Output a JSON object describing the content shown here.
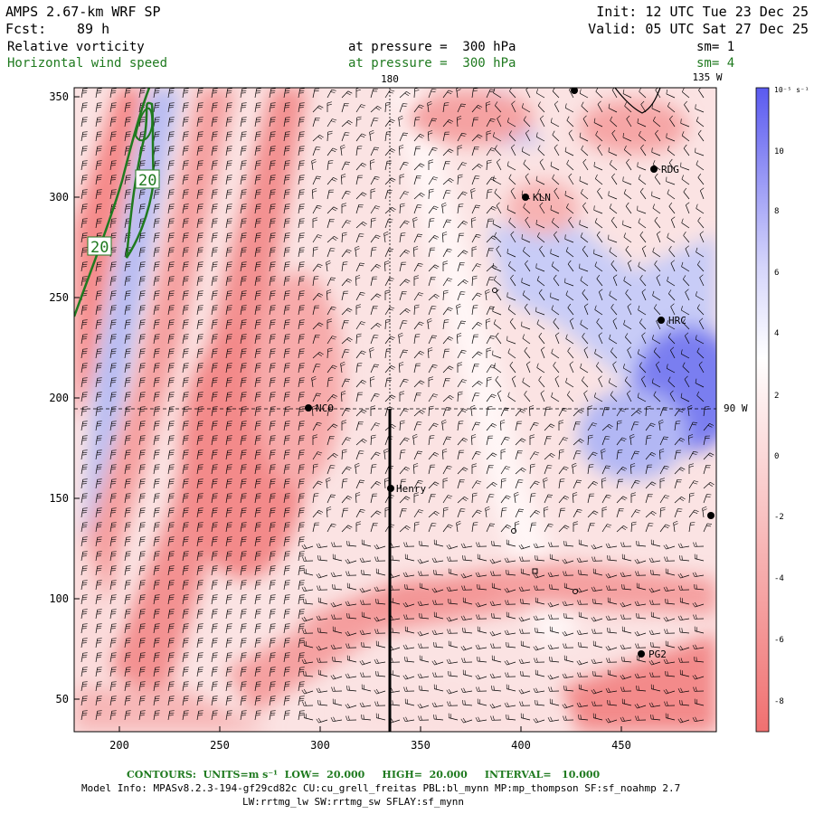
{
  "header": {
    "title": "AMPS 2.67-km WRF SP",
    "init": "Init: 12 UTC Tue 23 Dec 25",
    "fcst_label": "Fcst:",
    "fcst_value": "89 h",
    "valid": "Valid: 05 UTC Sat 27 Dec 25",
    "field1": "Relative vorticity",
    "field1_level": "at pressure =  300 hPa",
    "field1_sm": "sm= 1",
    "field2": "Horizontal wind speed",
    "field2_level": "at pressure =  300 hPa",
    "field2_sm": "sm= 4"
  },
  "map": {
    "meridian_top_label": "180",
    "meridian_right_top_label": "135 W",
    "parallel_label": "90 W",
    "x_ticks": [
      "200",
      "250",
      "300",
      "350",
      "400",
      "450"
    ],
    "y_ticks": [
      "350",
      "300",
      "250",
      "200",
      "150",
      "100",
      "50"
    ],
    "contour_labels": [
      "20",
      "20"
    ],
    "stations": [
      "KLN",
      "RDG",
      "HRC",
      "NCO",
      "Henry",
      "PG2"
    ],
    "colors": {
      "positive": "#5a5af0",
      "negative": "#f07070",
      "contour": "#1f7a1f",
      "barb": "#000000"
    }
  },
  "colorbar": {
    "unit_label": "10⁻⁵ s⁻¹",
    "ticks": [
      "10",
      "8",
      "6",
      "4",
      "2",
      "0",
      "-2",
      "-4",
      "-6",
      "-8"
    ]
  },
  "footer": {
    "contours_line": "CONTOURS:  UNITS=m s⁻¹  LOW=  20.000     HIGH=  20.000     INTERVAL=   10.000",
    "model_info": "Model Info: MPASv8.2.3-194-gf29cd82c CU:cu_grell_freitas PBL:bl_mynn MP:mp_thompson SF:sf_noahmp 2.7",
    "model_info2": "LW:rrtmg_lw SW:rrtmg_sw SFLAY:sf_mynn"
  }
}
